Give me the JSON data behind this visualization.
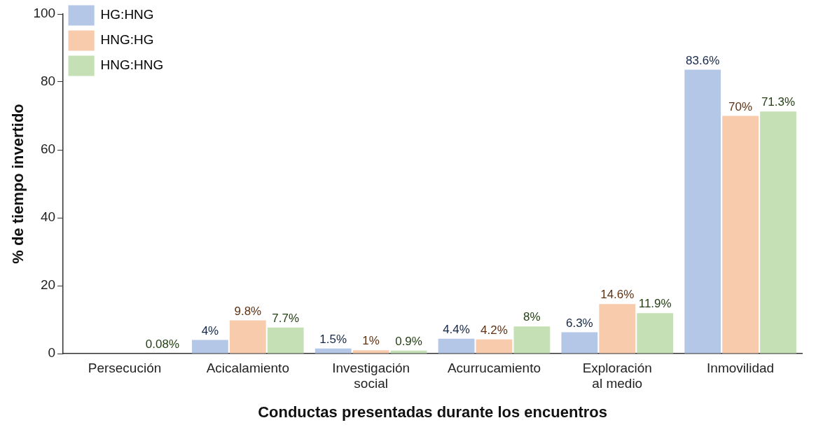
{
  "chart_data": {
    "type": "bar",
    "xlabel": "Conductas presentadas durante los encuentros",
    "ylabel": "% de tiempo invertido",
    "categories": [
      "Persecución",
      "Acicalamiento",
      "Investigación social",
      "Acurrucamiento",
      "Exploración al medio",
      "Inmovilidad"
    ],
    "series": [
      {
        "name": "HG:HNG",
        "color": "#b4c7e7",
        "values": [
          null,
          4,
          1.5,
          4.4,
          6.3,
          83.6
        ],
        "value_labels": [
          null,
          "4%",
          "1.5%",
          "4.4%",
          "6.3%",
          "83.6%"
        ]
      },
      {
        "name": "HNG:HG",
        "color": "#f8cbad",
        "values": [
          null,
          9.8,
          1,
          4.2,
          14.6,
          70
        ],
        "value_labels": [
          null,
          "9.8%",
          "1%",
          "4.2%",
          "14.6%",
          "70%"
        ]
      },
      {
        "name": "HNG:HNG",
        "color": "#c5e0b4",
        "values": [
          0.08,
          7.7,
          0.9,
          8,
          11.9,
          71.3
        ],
        "value_labels": [
          "0.08%",
          "7.7%",
          "0.9%",
          "8%",
          "11.9%",
          "71.3%"
        ]
      }
    ],
    "ylim": [
      0,
      100
    ],
    "yticks": [
      0,
      20,
      40,
      60,
      80,
      100
    ],
    "grid": false,
    "legend": "top left"
  }
}
